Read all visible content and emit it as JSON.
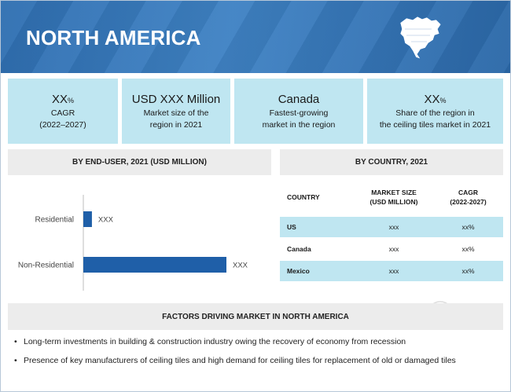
{
  "banner": {
    "title": "NORTH AMERICA",
    "colors": {
      "start": "#2f6fb1",
      "end": "#2b68a8"
    }
  },
  "stats": [
    {
      "big": "XX",
      "big_unit": "%",
      "line1": "CAGR",
      "line2": "(2022–2027)"
    },
    {
      "big": "USD XXX Million",
      "big_unit": "",
      "line1": "Market size of the",
      "line2": "region in 2021"
    },
    {
      "big": "Canada",
      "big_unit": "",
      "line1": "Fastest-growing",
      "line2": "market in the region"
    },
    {
      "big": "XX",
      "big_unit": "%",
      "line1": "Share of the region in",
      "line2": "the ceiling tiles market in 2021"
    }
  ],
  "end_user": {
    "header": "BY END-USER, 2021 (USD MILLION)"
  },
  "chart_data": {
    "type": "bar",
    "orientation": "horizontal",
    "categories": [
      "Residential",
      "Non-Residential"
    ],
    "values": [
      6,
      100
    ],
    "value_labels": [
      "XXX",
      "XXX"
    ],
    "xlim": [
      0,
      100
    ],
    "grid": false,
    "bar_color": "#1f5fa8"
  },
  "country": {
    "header": "BY COUNTRY, 2021",
    "columns": [
      "COUNTRY",
      "MARKET SIZE",
      "(USD MILLION)",
      "CAGR",
      "(2022-2027)"
    ],
    "rows": [
      {
        "country": "US",
        "size": "xxx",
        "cagr": "xx%"
      },
      {
        "country": "Canada",
        "size": "xxx",
        "cagr": "xx%"
      },
      {
        "country": "Mexico",
        "size": "xxx",
        "cagr": "xx%"
      }
    ]
  },
  "factors": {
    "header": "FACTORS DRIVING MARKET IN NORTH AMERICA",
    "items": [
      "Long-term investments in building & construction industry owing the recovery of economy from recession",
      "Presence of key manufacturers of ceiling tiles and high demand for ceiling tiles for replacement of old or damaged tiles"
    ]
  },
  "icons": {
    "map": "north-america-map-icon",
    "watermark": "logo-watermark-icon"
  }
}
